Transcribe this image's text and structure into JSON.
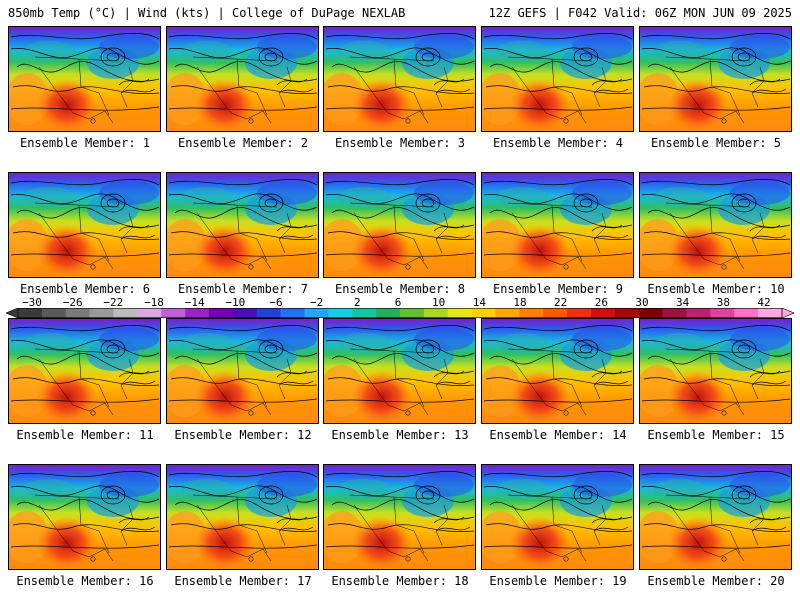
{
  "header": {
    "left": "850mb Temp (°C) | Wind (kts) | College of DuPage NEXLAB",
    "right": "12Z GEFS | F042 Valid: 06Z MON JUN 09 2025"
  },
  "panels": [
    {
      "label": "Ensemble Member: 1"
    },
    {
      "label": "Ensemble Member: 2"
    },
    {
      "label": "Ensemble Member: 3"
    },
    {
      "label": "Ensemble Member: 4"
    },
    {
      "label": "Ensemble Member: 5"
    },
    {
      "label": "Ensemble Member: 6"
    },
    {
      "label": "Ensemble Member: 7"
    },
    {
      "label": "Ensemble Member: 8"
    },
    {
      "label": "Ensemble Member: 9"
    },
    {
      "label": "Ensemble Member: 10"
    },
    {
      "label": "Ensemble Member: 11"
    },
    {
      "label": "Ensemble Member: 12"
    },
    {
      "label": "Ensemble Member: 13"
    },
    {
      "label": "Ensemble Member: 14"
    },
    {
      "label": "Ensemble Member: 15"
    },
    {
      "label": "Ensemble Member: 16"
    },
    {
      "label": "Ensemble Member: 17"
    },
    {
      "label": "Ensemble Member: 18"
    },
    {
      "label": "Ensemble Member: 19"
    },
    {
      "label": "Ensemble Member: 20"
    }
  ],
  "colorbar": {
    "ticks": [
      "−30",
      "−26",
      "−22",
      "−18",
      "−14",
      "−10",
      "−6",
      "−2",
      "2",
      "6",
      "10",
      "14",
      "18",
      "22",
      "26",
      "30",
      "34",
      "38",
      "42"
    ],
    "colors": [
      "#3a3a3a",
      "#5a5a5a",
      "#7a7a7a",
      "#9a9a9a",
      "#bcbcbc",
      "#d8a8e0",
      "#c060d8",
      "#a020c8",
      "#7800b8",
      "#4a10c0",
      "#2040e0",
      "#2070ff",
      "#20a8ff",
      "#10d0e8",
      "#10c8a0",
      "#20b060",
      "#60c030",
      "#a8d820",
      "#e8e810",
      "#ffd000",
      "#ffa800",
      "#ff8000",
      "#ff5800",
      "#f03010",
      "#d01010",
      "#a80808",
      "#800000",
      "#a01040",
      "#c02070",
      "#e040a0",
      "#ff70c8",
      "#ffa8e0"
    ]
  }
}
